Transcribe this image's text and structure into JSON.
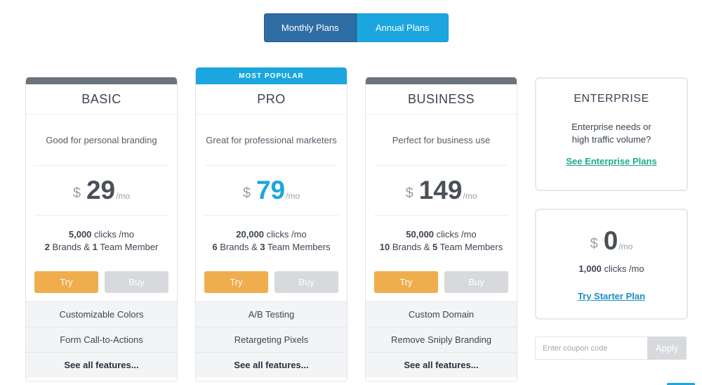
{
  "toggle": {
    "monthly": "Monthly Plans",
    "annual": "Annual Plans"
  },
  "plans": [
    {
      "name": "BASIC",
      "desc": "Good for personal branding",
      "currency": "$",
      "price": "29",
      "per": "/mo",
      "clicks_num": "5,000",
      "clicks_label": "clicks /mo",
      "brands_num": "2",
      "brands_label": "Brands &",
      "members_num": "1",
      "members_label": "Team Member",
      "try": "Try",
      "buy": "Buy",
      "features": [
        "Customizable Colors",
        "Form Call-to-Actions"
      ],
      "see_all": "See all features..."
    },
    {
      "name": "PRO",
      "badge": "MOST POPULAR",
      "desc": "Great for professional marketers",
      "currency": "$",
      "price": "79",
      "per": "/mo",
      "clicks_num": "20,000",
      "clicks_label": "clicks /mo",
      "brands_num": "6",
      "brands_label": "Brands &",
      "members_num": "3",
      "members_label": "Team Members",
      "try": "Try",
      "buy": "Buy",
      "features": [
        "A/B Testing",
        "Retargeting Pixels"
      ],
      "see_all": "See all features..."
    },
    {
      "name": "BUSINESS",
      "desc": "Perfect for business use",
      "currency": "$",
      "price": "149",
      "per": "/mo",
      "clicks_num": "50,000",
      "clicks_label": "clicks /mo",
      "brands_num": "10",
      "brands_label": "Brands &",
      "members_num": "5",
      "members_label": "Team Members",
      "try": "Try",
      "buy": "Buy",
      "features": [
        "Custom Domain",
        "Remove Sniply Branding"
      ],
      "see_all": "See all features..."
    }
  ],
  "enterprise": {
    "title": "ENTERPRISE",
    "line1": "Enterprise needs or",
    "line2": "high traffic volume?",
    "link": "See Enterprise Plans"
  },
  "starter": {
    "currency": "$",
    "price": "0",
    "per": "/mo",
    "clicks_num": "1,000",
    "clicks_label": "clicks /mo",
    "link": "Try Starter Plan"
  },
  "coupon": {
    "placeholder": "Enter coupon code",
    "apply": "Apply"
  },
  "colors": {
    "primary": "#2f6ea5",
    "accent": "#1ba6df",
    "try": "#f0ad4e",
    "enterprise_link": "#1faa8c"
  }
}
